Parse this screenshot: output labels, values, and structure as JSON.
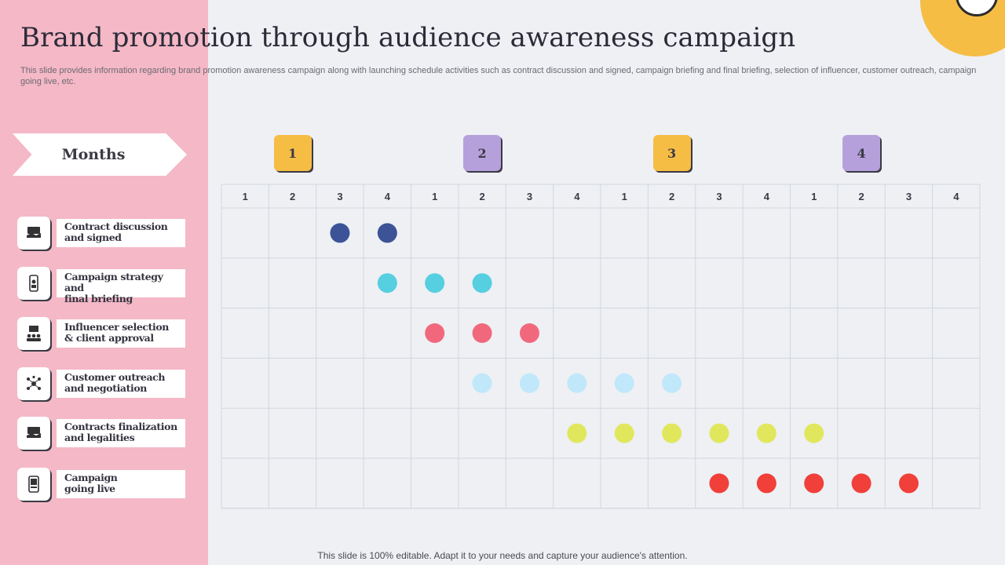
{
  "title": "Brand promotion through audience awareness campaign",
  "subtitle": "This slide provides information regarding brand promotion awareness campaign along with launching schedule activities such as contract discussion and signed, campaign briefing and final briefing, selection of influencer, customer outreach, campaign going live, etc.",
  "months_label": "Months",
  "quarters": [
    {
      "label": "1",
      "color": "#f6bd45"
    },
    {
      "label": "2",
      "color": "#b6a0db"
    },
    {
      "label": "3",
      "color": "#f6bd45"
    },
    {
      "label": "4",
      "color": "#b6a0db"
    }
  ],
  "week_labels": [
    "1",
    "2",
    "3",
    "4",
    "1",
    "2",
    "3",
    "4",
    "1",
    "2",
    "3",
    "4",
    "1",
    "2",
    "3",
    "4"
  ],
  "activities": [
    {
      "label_line1": "Contract discussion",
      "label_line2": "and signed",
      "icon": "handshake-icon"
    },
    {
      "label_line1": "Campaign strategy and",
      "label_line2": "final briefing",
      "icon": "mobile-briefing-icon"
    },
    {
      "label_line1": "Influencer selection",
      "label_line2": "& client approval",
      "icon": "influencer-presentation-icon"
    },
    {
      "label_line1": "Customer outreach",
      "label_line2": "and negotiation",
      "icon": "network-people-icon"
    },
    {
      "label_line1": "Contracts finalization",
      "label_line2": "and legalities",
      "icon": "handshake-icon"
    },
    {
      "label_line1": "Campaign",
      "label_line2": "going live",
      "icon": "mobile-live-icon"
    }
  ],
  "chart_data": {
    "type": "table",
    "columns": [
      "1",
      "2",
      "3",
      "4",
      "1",
      "2",
      "3",
      "4",
      "1",
      "2",
      "3",
      "4",
      "1",
      "2",
      "3",
      "4"
    ],
    "rows": [
      {
        "name": "Contract discussion and signed",
        "color": "#3c5397",
        "dots": [
          2,
          3
        ]
      },
      {
        "name": "Campaign strategy and final briefing",
        "color": "#56cfe0",
        "dots": [
          3,
          4,
          5
        ]
      },
      {
        "name": "Influencer selection & client approval",
        "color": "#f1687d",
        "dots": [
          4,
          5,
          6
        ]
      },
      {
        "name": "Customer outreach and negotiation",
        "color": "#c0e8fa",
        "dots": [
          5,
          6,
          7,
          8,
          9
        ]
      },
      {
        "name": "Contracts finalization and legalities",
        "color": "#e1e75c",
        "dots": [
          7,
          8,
          9,
          10,
          11,
          12
        ]
      },
      {
        "name": "Campaign going live",
        "color": "#f13f3a",
        "dots": [
          10,
          11,
          12,
          13,
          14
        ]
      }
    ]
  },
  "footer": "This slide is 100% editable. Adapt it to your needs and capture your audience's attention."
}
